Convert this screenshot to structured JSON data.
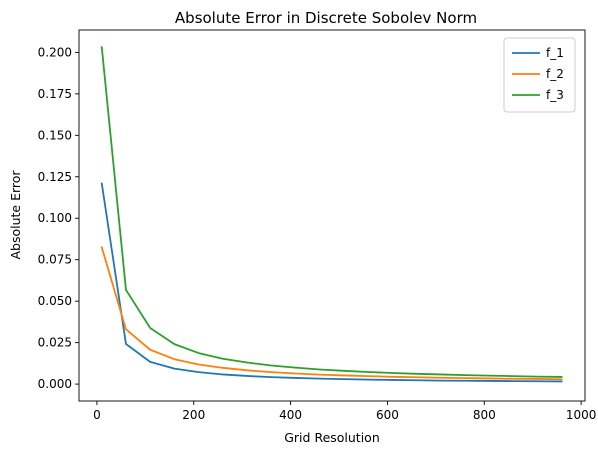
{
  "chart_data": {
    "type": "line",
    "title": "Absolute Error in Discrete Sobolev Norm",
    "xlabel": "Grid Resolution",
    "ylabel": "Absolute Error",
    "xlim": [
      -37,
      1008
    ],
    "ylim": [
      -0.0102,
      0.2135
    ],
    "xticks": [
      0,
      200,
      400,
      600,
      800,
      1000
    ],
    "xtick_labels": [
      "0",
      "200",
      "400",
      "600",
      "800",
      "1000"
    ],
    "yticks": [
      0.0,
      0.025,
      0.05,
      0.075,
      0.1,
      0.125,
      0.15,
      0.175,
      0.2
    ],
    "ytick_labels": [
      "0.000",
      "0.025",
      "0.050",
      "0.075",
      "0.100",
      "0.125",
      "0.150",
      "0.175",
      "0.200"
    ],
    "grid": false,
    "legend_position": "top-right",
    "x": [
      10,
      60,
      110,
      160,
      210,
      260,
      310,
      360,
      410,
      460,
      510,
      560,
      610,
      660,
      710,
      760,
      810,
      860,
      910,
      960
    ],
    "series": [
      {
        "name": "f_1",
        "color": "#1f77b4",
        "values": [
          0.121,
          0.0242,
          0.0134,
          0.0093,
          0.0072,
          0.0058,
          0.0049,
          0.0042,
          0.0037,
          0.0033,
          0.003,
          0.0027,
          0.0025,
          0.0023,
          0.0021,
          0.002,
          0.0019,
          0.0018,
          0.0017,
          0.0016
        ]
      },
      {
        "name": "f_2",
        "color": "#ff7f0e",
        "values": [
          0.0825,
          0.033,
          0.0207,
          0.015,
          0.0118,
          0.0098,
          0.0083,
          0.0072,
          0.0064,
          0.0057,
          0.0052,
          0.0048,
          0.0044,
          0.0041,
          0.0038,
          0.0036,
          0.0034,
          0.0032,
          0.0031,
          0.0029
        ]
      },
      {
        "name": "f_3",
        "color": "#2ca02c",
        "values": [
          0.2032,
          0.0568,
          0.0338,
          0.0241,
          0.0187,
          0.0153,
          0.013,
          0.0112,
          0.0099,
          0.0088,
          0.008,
          0.0073,
          0.0067,
          0.0062,
          0.0058,
          0.0054,
          0.0051,
          0.0048,
          0.0045,
          0.0043
        ]
      }
    ]
  }
}
